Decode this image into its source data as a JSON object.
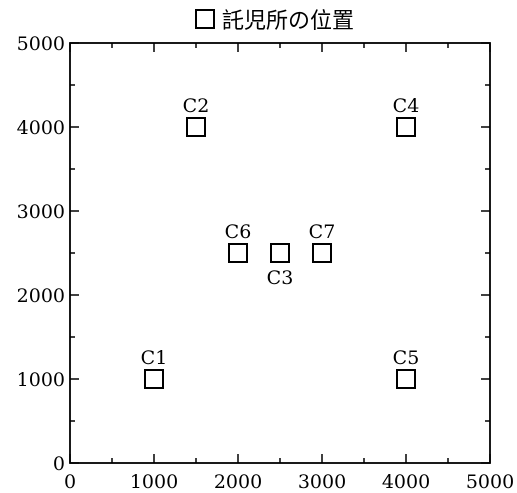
{
  "chart_data": {
    "type": "scatter",
    "title": "",
    "xlabel": "",
    "ylabel": "",
    "xlim": [
      0,
      5000
    ],
    "ylim": [
      0,
      5000
    ],
    "xticks": [
      0,
      1000,
      2000,
      3000,
      4000,
      5000
    ],
    "yticks": [
      0,
      1000,
      2000,
      3000,
      4000,
      5000
    ],
    "grid": false,
    "legend_position": "top-center",
    "series": [
      {
        "name": "託児所の位置",
        "marker": "square",
        "color": "#000000",
        "points": [
          {
            "label": "C1",
            "x": 1000,
            "y": 1000,
            "label_pos": "above"
          },
          {
            "label": "C2",
            "x": 1500,
            "y": 4000,
            "label_pos": "above"
          },
          {
            "label": "C3",
            "x": 2500,
            "y": 2500,
            "label_pos": "below"
          },
          {
            "label": "C4",
            "x": 4000,
            "y": 4000,
            "label_pos": "above"
          },
          {
            "label": "C5",
            "x": 4000,
            "y": 1000,
            "label_pos": "above"
          },
          {
            "label": "C6",
            "x": 2000,
            "y": 2500,
            "label_pos": "above"
          },
          {
            "label": "C7",
            "x": 3000,
            "y": 2500,
            "label_pos": "above"
          }
        ]
      }
    ]
  }
}
